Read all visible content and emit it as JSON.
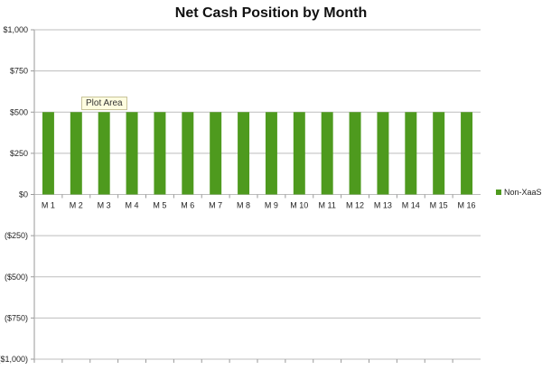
{
  "chart_data": {
    "type": "bar",
    "title": "Net Cash Position by Month",
    "categories": [
      "M 1",
      "M 2",
      "M 3",
      "M 4",
      "M 5",
      "M 6",
      "M 7",
      "M 8",
      "M 9",
      "M 10",
      "M 11",
      "M 12",
      "M 13",
      "M 14",
      "M 15",
      "M 16"
    ],
    "series": [
      {
        "name": "Non-XaaS",
        "values": [
          500,
          500,
          500,
          500,
          500,
          500,
          500,
          500,
          500,
          500,
          500,
          500,
          500,
          500,
          500,
          500
        ],
        "color": "#4e9a1e"
      }
    ],
    "ylim": [
      -1000,
      1000
    ],
    "yticks": [
      1000,
      750,
      500,
      250,
      0,
      -250,
      -500,
      -750,
      -1000
    ],
    "ytick_labels": [
      "$1,000",
      "$750",
      "$500",
      "$250",
      "$0",
      "($250)",
      "($500)",
      "($750)",
      "($1,000)"
    ],
    "negative_label_color": "#cc2222",
    "grid": true,
    "legend": "right"
  },
  "tooltip": {
    "text": "Plot Area"
  }
}
